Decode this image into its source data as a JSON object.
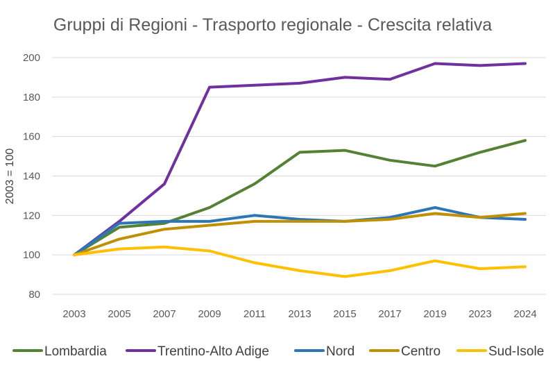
{
  "chart_data": {
    "type": "line",
    "title": "Gruppi di Regioni - Trasporto regionale - Crescita relativa",
    "xlabel": "",
    "ylabel": "2003 = 100",
    "categories": [
      "2003",
      "2005",
      "2007",
      "2009",
      "2011",
      "2013",
      "2015",
      "2017",
      "2019",
      "2023",
      "2024"
    ],
    "ylim": [
      80,
      200
    ],
    "yticks": [
      80,
      100,
      120,
      140,
      160,
      180,
      200
    ],
    "grid": true,
    "legend_position": "bottom",
    "series": [
      {
        "name": "Lombardia",
        "color": "#548235",
        "values": [
          100,
          114,
          116,
          124,
          136,
          152,
          153,
          148,
          145,
          152,
          158
        ]
      },
      {
        "name": "Trentino-Alto Adige",
        "color": "#7030A0",
        "values": [
          100,
          117,
          136,
          185,
          186,
          187,
          190,
          189,
          197,
          196,
          197
        ]
      },
      {
        "name": "Nord",
        "color": "#2E75B6",
        "values": [
          100,
          116,
          117,
          117,
          120,
          118,
          117,
          119,
          124,
          119,
          118
        ]
      },
      {
        "name": "Centro",
        "color": "#BF9000",
        "values": [
          100,
          108,
          113,
          115,
          117,
          117,
          117,
          118,
          121,
          119,
          121
        ]
      },
      {
        "name": "Sud-Isole",
        "color": "#FFC000",
        "values": [
          100,
          103,
          104,
          102,
          96,
          92,
          89,
          92,
          97,
          93,
          94
        ]
      }
    ]
  }
}
